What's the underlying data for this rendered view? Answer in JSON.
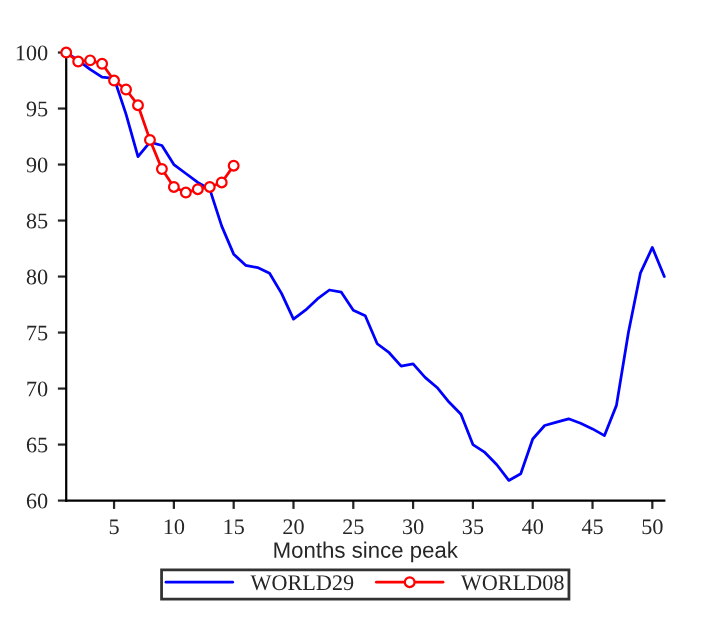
{
  "chart_data": {
    "type": "line",
    "xlabel": "Months since peak",
    "x": [
      1,
      2,
      3,
      4,
      5,
      6,
      7,
      8,
      9,
      10,
      11,
      12,
      13,
      14,
      15,
      16,
      17,
      18,
      19,
      20,
      21,
      22,
      23,
      24,
      25,
      26,
      27,
      28,
      29,
      30,
      31,
      32,
      33,
      34,
      35,
      36,
      37,
      38,
      39,
      40,
      41,
      42,
      43,
      44,
      45,
      46,
      47,
      48,
      49,
      50,
      51
    ],
    "series": [
      {
        "name": "WORLD29",
        "color": "#0000ff",
        "marker": "none",
        "values": [
          100,
          99.3,
          98.5,
          97.8,
          97.7,
          94.5,
          90.7,
          92,
          91.7,
          90,
          89.2,
          88.4,
          87.8,
          84.5,
          82,
          81,
          80.8,
          80.3,
          78.5,
          76.2,
          77,
          78,
          78.8,
          78.6,
          77,
          76.5,
          74,
          73.2,
          72,
          72.2,
          71,
          70.1,
          68.8,
          67.7,
          65,
          64.3,
          63.2,
          61.8,
          62.4,
          65.5,
          66.7,
          67,
          67.3,
          66.9,
          66.4,
          65.8,
          68.5,
          75,
          80.3,
          82.6,
          80
        ]
      },
      {
        "name": "WORLD08",
        "color": "#ff0000",
        "marker": "circle",
        "x": [
          1,
          2,
          3,
          4,
          5,
          6,
          7,
          8,
          9,
          10,
          11,
          12,
          13,
          14,
          15
        ],
        "values": [
          100,
          99.2,
          99.3,
          99,
          97.5,
          96.7,
          95.3,
          92.2,
          89.6,
          88,
          87.5,
          87.8,
          88,
          88.4,
          89.9
        ]
      }
    ],
    "xlim": [
      1,
      51
    ],
    "xticks": [
      5,
      10,
      15,
      20,
      25,
      30,
      35,
      40,
      45,
      50
    ],
    "ylim": [
      60,
      100
    ],
    "yticks": [
      60,
      65,
      70,
      75,
      80,
      85,
      90,
      95,
      100
    ],
    "grid": false,
    "legend": "bottom"
  }
}
